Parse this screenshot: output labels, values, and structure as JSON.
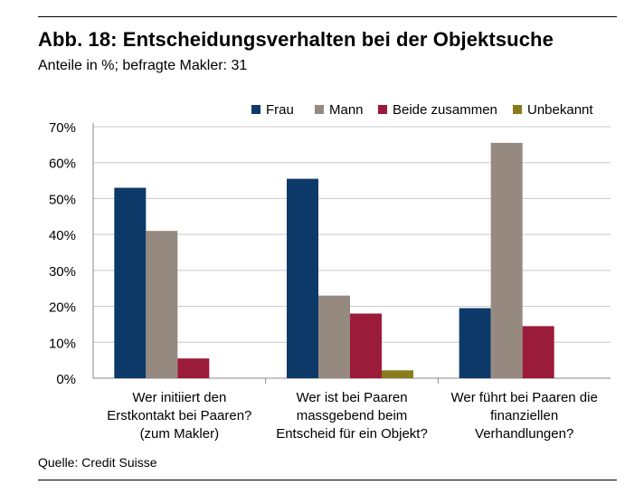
{
  "title": "Abb. 18: Entscheidungsverhalten bei der Objektsuche",
  "subtitle": "Anteile in %; befragte Makler: 31",
  "source": "Quelle: Credit Suisse",
  "chart_data": {
    "type": "bar",
    "title": "Abb. 18: Entscheidungsverhalten bei der Objektsuche",
    "subtitle": "Anteile in %; befragte Makler: 31",
    "xlabel": "",
    "ylabel": "",
    "ylim": [
      0,
      70
    ],
    "yticks": [
      0,
      10,
      20,
      30,
      40,
      50,
      60,
      70
    ],
    "ytick_labels": [
      "0%",
      "10%",
      "20%",
      "30%",
      "40%",
      "50%",
      "60%",
      "70%"
    ],
    "grid": true,
    "legend_position": "top-right",
    "categories": [
      [
        "Wer initiiert den",
        "Erstkontakt bei Paaren?",
        "(zum Makler)"
      ],
      [
        "Wer ist bei Paaren",
        "massgebend beim",
        "Entscheid für ein Objekt?"
      ],
      [
        "Wer führt bei Paaren die",
        "finanziellen",
        "Verhandlungen?"
      ]
    ],
    "series": [
      {
        "name": "Frau",
        "color": "#0d3a68",
        "values": [
          53,
          55.5,
          19.5
        ]
      },
      {
        "name": "Mann",
        "color": "#968a80",
        "values": [
          41,
          23,
          65.5
        ]
      },
      {
        "name": "Beide zusammen",
        "color": "#9b1b3a",
        "values": [
          5.5,
          18,
          14.5
        ]
      },
      {
        "name": "Unbekannt",
        "color": "#8a7b1c",
        "values": [
          0,
          2.2,
          0
        ]
      }
    ]
  }
}
